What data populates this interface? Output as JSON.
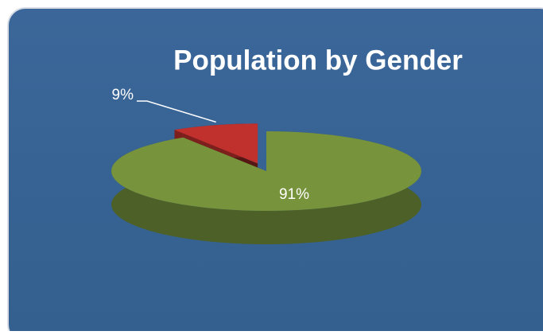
{
  "chart_data": {
    "type": "pie",
    "title": "Population by Gender",
    "values": [
      91,
      9
    ],
    "value_labels": [
      "91%",
      "9%"
    ],
    "colors": [
      "#77933c",
      "#c0302c"
    ]
  }
}
